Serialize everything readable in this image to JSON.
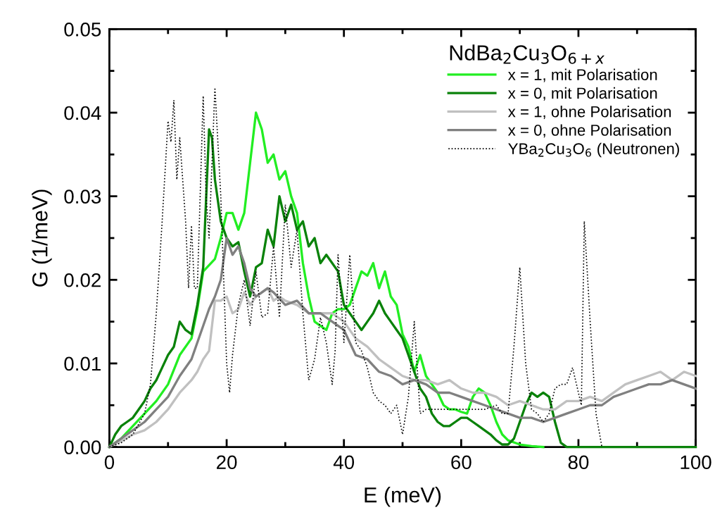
{
  "chart_data": {
    "type": "line",
    "xlabel": "E (meV)",
    "ylabel": "G (1/meV)",
    "legend_title": "NdBa$_{2}$Cu$_{3}$O$_{6+x}$",
    "legend": "top right",
    "grid": false,
    "marker": "none",
    "xlim": [
      0,
      100
    ],
    "xticks": [
      0,
      20,
      40,
      60,
      80,
      100
    ],
    "ylim": [
      0,
      0.05
    ],
    "yticks": [
      {
        "value": 0,
        "label": "0.00"
      },
      {
        "value": 0.01,
        "label": "0.01"
      },
      {
        "value": 0.02,
        "label": "0.02"
      },
      {
        "value": 0.03,
        "label": "0.03"
      },
      {
        "value": 0.04,
        "label": "0.04"
      },
      {
        "value": 0.05,
        "label": "0.05"
      }
    ],
    "series": [
      {
        "name": "x = 1, mit Polarisation",
        "color": "#22ee22",
        "line_style": "solid",
        "x": [
          0,
          2,
          4,
          6,
          8,
          10,
          12,
          14,
          15,
          16,
          18,
          19,
          20,
          21,
          22,
          23,
          24,
          25,
          26,
          27,
          28,
          29,
          30,
          31,
          32,
          33,
          34,
          35,
          36,
          37,
          38,
          39,
          40,
          41,
          42,
          43,
          44,
          45,
          46,
          47,
          48,
          49,
          50,
          51,
          52,
          53,
          54,
          55,
          56,
          57,
          58,
          59,
          60,
          61,
          62,
          63,
          64,
          65,
          66,
          67,
          68,
          70,
          72,
          74
        ],
        "values": [
          0,
          0.001,
          0.0025,
          0.004,
          0.0055,
          0.0075,
          0.011,
          0.013,
          0.0165,
          0.021,
          0.0225,
          0.025,
          0.028,
          0.028,
          0.026,
          0.028,
          0.034,
          0.04,
          0.038,
          0.034,
          0.035,
          0.032,
          0.033,
          0.03,
          0.028,
          0.022,
          0.018,
          0.015,
          0.0145,
          0.014,
          0.016,
          0.0165,
          0.0165,
          0.017,
          0.019,
          0.021,
          0.0205,
          0.022,
          0.019,
          0.021,
          0.018,
          0.017,
          0.0135,
          0.012,
          0.009,
          0.011,
          0.0085,
          0.0075,
          0.0065,
          0.005,
          0.0045,
          0.0045,
          0.0042,
          0.004,
          0.006,
          0.007,
          0.0065,
          0.005,
          0.003,
          0.0015,
          0.0008,
          0.0003,
          0.0001,
          0
        ]
      },
      {
        "name": "x = 0, mit Polarisation",
        "color": "#0a820a",
        "line_style": "solid",
        "x": [
          0,
          1,
          2,
          3,
          4,
          5,
          6,
          7,
          8,
          9,
          10,
          11,
          12,
          13,
          14,
          15,
          16,
          17,
          17.5,
          18,
          19,
          20,
          21,
          22,
          23,
          24,
          25,
          26,
          27,
          28,
          29,
          30,
          31,
          32,
          33,
          34,
          35,
          36,
          37,
          38,
          39,
          40,
          41,
          42,
          43,
          44,
          45,
          46,
          47,
          48,
          49,
          50,
          51,
          52,
          53,
          54,
          55,
          56,
          57,
          58,
          59,
          60,
          61,
          62,
          63,
          64,
          65,
          66,
          67,
          68,
          69,
          70,
          71,
          72,
          73,
          74,
          75,
          76,
          77,
          78,
          100
        ],
        "values": [
          0,
          0.0015,
          0.0025,
          0.003,
          0.0035,
          0.0045,
          0.0055,
          0.007,
          0.008,
          0.0095,
          0.011,
          0.012,
          0.015,
          0.014,
          0.0135,
          0.017,
          0.0215,
          0.038,
          0.037,
          0.032,
          0.027,
          0.025,
          0.024,
          0.0245,
          0.021,
          0.018,
          0.0215,
          0.022,
          0.026,
          0.024,
          0.03,
          0.027,
          0.029,
          0.026,
          0.027,
          0.024,
          0.025,
          0.022,
          0.023,
          0.022,
          0.021,
          0.017,
          0.016,
          0.015,
          0.014,
          0.015,
          0.016,
          0.0175,
          0.016,
          0.015,
          0.014,
          0.013,
          0.011,
          0.009,
          0.007,
          0.006,
          0.004,
          0.003,
          0.0025,
          0.0025,
          0.003,
          0.0035,
          0.0035,
          0.003,
          0.0025,
          0.002,
          0.0015,
          0.0008,
          0.0003,
          0.0003,
          0.001,
          0.003,
          0.005,
          0.0065,
          0.006,
          0.0065,
          0.006,
          0.003,
          0.0005,
          0,
          0
        ]
      },
      {
        "name": "x = 1, ohne Polarisation",
        "color": "#c0c0c0",
        "line_style": "solid",
        "x": [
          0,
          2,
          4,
          6,
          8,
          10,
          12,
          14,
          15,
          16,
          17,
          18,
          19,
          20,
          21,
          22,
          23,
          24,
          25,
          26,
          27,
          28,
          29,
          30,
          32,
          34,
          36,
          38,
          40,
          42,
          44,
          46,
          48,
          50,
          52,
          54,
          56,
          58,
          60,
          62,
          64,
          66,
          68,
          70,
          72,
          74,
          76,
          78,
          80,
          82,
          84,
          86,
          88,
          90,
          92,
          94,
          96,
          98,
          100
        ],
        "values": [
          0,
          0.0007,
          0.0015,
          0.002,
          0.003,
          0.0045,
          0.0065,
          0.008,
          0.009,
          0.0105,
          0.0115,
          0.0175,
          0.0175,
          0.018,
          0.016,
          0.0165,
          0.0185,
          0.017,
          0.018,
          0.0185,
          0.019,
          0.0175,
          0.018,
          0.0175,
          0.017,
          0.016,
          0.016,
          0.016,
          0.015,
          0.013,
          0.012,
          0.0105,
          0.0095,
          0.0085,
          0.008,
          0.008,
          0.0075,
          0.008,
          0.007,
          0.0065,
          0.0065,
          0.006,
          0.005,
          0.0055,
          0.005,
          0.0045,
          0.0045,
          0.0055,
          0.0055,
          0.006,
          0.0055,
          0.0065,
          0.0075,
          0.008,
          0.0085,
          0.009,
          0.008,
          0.009,
          0.0085
        ]
      },
      {
        "name": "x = 0, ohne Polarisation",
        "color": "#808080",
        "line_style": "solid",
        "x": [
          0,
          2,
          4,
          6,
          8,
          10,
          12,
          14,
          16,
          17,
          18,
          19,
          20,
          21,
          22,
          23,
          24,
          25,
          26,
          27,
          28,
          30,
          32,
          34,
          36,
          38,
          40,
          42,
          44,
          46,
          48,
          50,
          52,
          54,
          56,
          58,
          60,
          62,
          64,
          66,
          68,
          70,
          72,
          74,
          76,
          78,
          80,
          82,
          84,
          86,
          88,
          90,
          92,
          94,
          96,
          98,
          100
        ],
        "values": [
          0,
          0.001,
          0.002,
          0.003,
          0.0045,
          0.006,
          0.0085,
          0.0105,
          0.0145,
          0.0165,
          0.018,
          0.02,
          0.025,
          0.023,
          0.024,
          0.022,
          0.019,
          0.018,
          0.0185,
          0.019,
          0.0185,
          0.017,
          0.0175,
          0.016,
          0.016,
          0.015,
          0.014,
          0.011,
          0.0105,
          0.009,
          0.0085,
          0.0075,
          0.008,
          0.0075,
          0.0065,
          0.0065,
          0.006,
          0.0055,
          0.005,
          0.0045,
          0.004,
          0.0035,
          0.0035,
          0.003,
          0.0035,
          0.004,
          0.0045,
          0.005,
          0.005,
          0.006,
          0.0065,
          0.007,
          0.0075,
          0.0075,
          0.008,
          0.0075,
          0.007
        ]
      },
      {
        "name": "YBa$_{2}$Cu$_{3}$O$_{6}$ (Neutronen)",
        "color": "#000000",
        "line_style": "dotted",
        "x": [
          0,
          2,
          4,
          6,
          7,
          8,
          9,
          10,
          10.5,
          11,
          11.5,
          12,
          13,
          13.5,
          14,
          14.5,
          15,
          16,
          16.5,
          17,
          18,
          19,
          20,
          20.5,
          21,
          22,
          23,
          24,
          25,
          26,
          27,
          28,
          29,
          30,
          31,
          32,
          33,
          34,
          35,
          36,
          37,
          38,
          38.5,
          39,
          40,
          41,
          42,
          43,
          44,
          45,
          46,
          47,
          48,
          49,
          50,
          51,
          52,
          53,
          54,
          56,
          58,
          60,
          62,
          64,
          66,
          67,
          68,
          69,
          70,
          71,
          72,
          73,
          74,
          75,
          76,
          77,
          78,
          79,
          80,
          80.5,
          81,
          82,
          83,
          84
        ],
        "values": [
          0,
          0.0005,
          0.0015,
          0.004,
          0.0075,
          0.016,
          0.027,
          0.039,
          0.0365,
          0.0415,
          0.032,
          0.037,
          0.027,
          0.019,
          0.0265,
          0.019,
          0.019,
          0.042,
          0.03,
          0.025,
          0.043,
          0.03,
          0.01,
          0.0065,
          0.011,
          0.017,
          0.02,
          0.0145,
          0.021,
          0.0155,
          0.016,
          0.024,
          0.0155,
          0.029,
          0.0215,
          0.026,
          0.016,
          0.008,
          0.0105,
          0.0155,
          0.0125,
          0.0075,
          0.0115,
          0.023,
          0.0125,
          0.023,
          0.0125,
          0.0115,
          0.0095,
          0.0065,
          0.0055,
          0.005,
          0.004,
          0.005,
          0.0015,
          0.006,
          0.015,
          0.004,
          0.0045,
          0.0045,
          0.0045,
          0.0045,
          0.0045,
          0.0045,
          0.005,
          0.004,
          0.004,
          0.012,
          0.0215,
          0.01,
          0.0045,
          0.004,
          0.003,
          0.004,
          0.007,
          0.0075,
          0.0075,
          0.0095,
          0.0065,
          0.005,
          0.027,
          0.015,
          0.004,
          0
        ]
      }
    ]
  }
}
